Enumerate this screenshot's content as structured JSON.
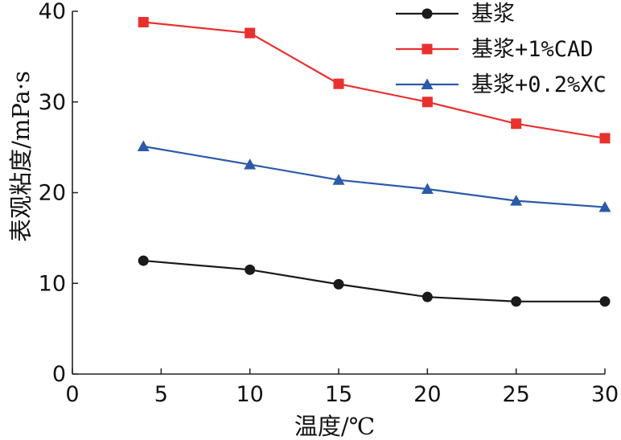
{
  "chart_data": {
    "type": "line",
    "xlabel": "温度/℃",
    "ylabel": "表观粘度/mPa·s",
    "xlim": [
      0,
      30
    ],
    "ylim": [
      0,
      40
    ],
    "xticks": [
      0,
      5,
      10,
      15,
      20,
      25,
      30
    ],
    "yticks": [
      0,
      10,
      20,
      30,
      40
    ],
    "grid": false,
    "legend_position": "top-right",
    "x": [
      4,
      10,
      15,
      20,
      25,
      30
    ],
    "series": [
      {
        "name": "基浆",
        "values": [
          12.5,
          11.5,
          9.9,
          8.5,
          8.0,
          8.0
        ],
        "color": "#1a1a1a",
        "marker": "circle"
      },
      {
        "name": "基浆+1%CAD",
        "values": [
          38.8,
          37.6,
          32.0,
          30.0,
          27.6,
          26.0
        ],
        "color": "#e8312f",
        "marker": "square"
      },
      {
        "name": "基浆+0.2%XC",
        "values": [
          25.1,
          23.1,
          21.4,
          20.4,
          19.1,
          18.4
        ],
        "color": "#2b5aa8",
        "marker": "triangle"
      }
    ]
  }
}
